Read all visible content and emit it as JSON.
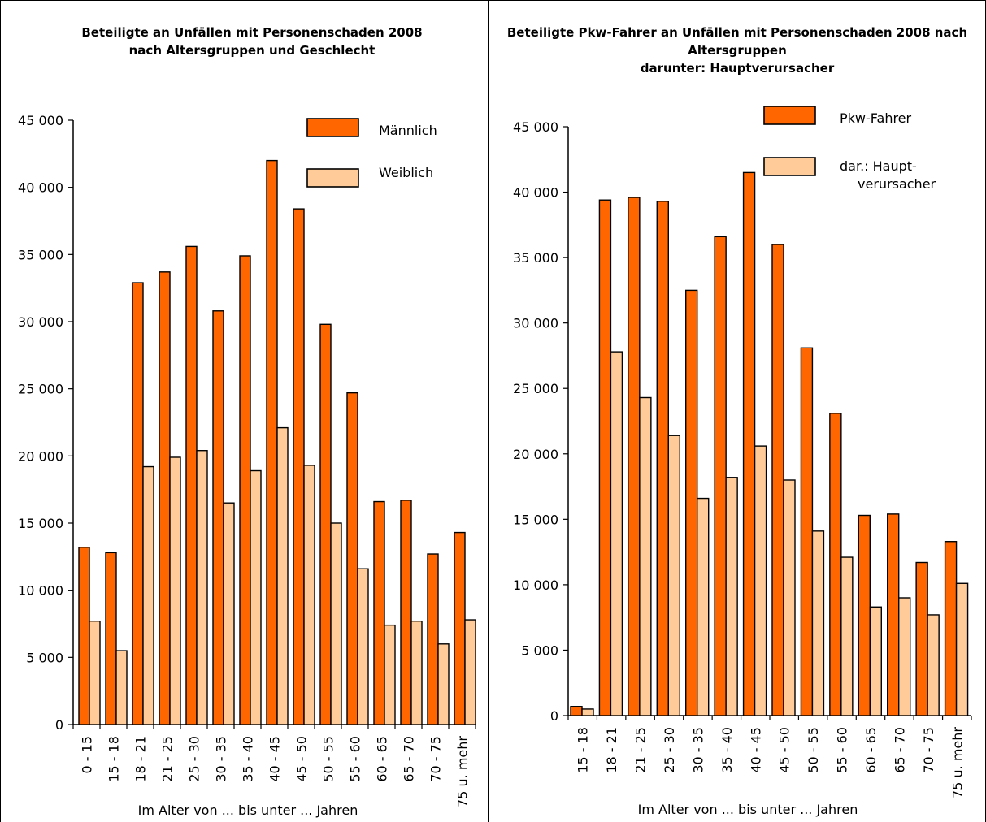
{
  "colors": {
    "male": "#ff6600",
    "female": "#ffcc99",
    "stroke": "#000000"
  },
  "chart_data": [
    {
      "type": "bar",
      "title": [
        "Beteiligte an Unfällen mit Personenschaden 2008",
        "nach Altersgruppen und Geschlecht"
      ],
      "xlabel": "Im Alter von ... bis unter ... Jahren",
      "ylabel": "",
      "ylim": [
        0,
        45000
      ],
      "yticks": [
        0,
        5000,
        10000,
        15000,
        20000,
        25000,
        30000,
        35000,
        40000,
        45000
      ],
      "ytick_labels": [
        "0",
        "5 000",
        "10 000",
        "15 000",
        "20 000",
        "25 000",
        "30 000",
        "35 000",
        "40 000",
        "45 000"
      ],
      "grid": false,
      "legend": "top-right",
      "categories": [
        "0 - 15",
        "15 - 18",
        "18 - 21",
        "21 - 25",
        "25 - 30",
        "30 - 35",
        "35 - 40",
        "40 - 45",
        "45 - 50",
        "50 - 55",
        "55 - 60",
        "60 - 65",
        "65 - 70",
        "70 - 75",
        "75 u. mehr"
      ],
      "series": [
        {
          "name": "Männlich",
          "values": [
            13200,
            12800,
            32900,
            33700,
            35600,
            30800,
            34900,
            42000,
            38400,
            29800,
            24700,
            16600,
            16700,
            12700,
            14300
          ]
        },
        {
          "name": "Weiblich",
          "values": [
            7700,
            5500,
            19200,
            19900,
            20400,
            16500,
            18900,
            22100,
            19300,
            15000,
            11600,
            7400,
            7700,
            6000,
            7800
          ]
        }
      ]
    },
    {
      "type": "bar",
      "title": [
        "Beteiligte Pkw-Fahrer an Unfällen mit Personenschaden 2008  nach",
        "Altersgruppen",
        "darunter: Hauptverursacher"
      ],
      "xlabel": "Im Alter von ... bis unter ... Jahren",
      "ylabel": "",
      "ylim": [
        0,
        45000
      ],
      "yticks": [
        0,
        5000,
        10000,
        15000,
        20000,
        25000,
        30000,
        35000,
        40000,
        45000
      ],
      "ytick_labels": [
        "0",
        "5 000",
        "10 000",
        "15 000",
        "20 000",
        "25 000",
        "30 000",
        "35 000",
        "40 000",
        "45 000"
      ],
      "grid": false,
      "legend": "top-right",
      "categories": [
        "15 - 18",
        "18 - 21",
        "21 - 25",
        "25 - 30",
        "30 - 35",
        "35 - 40",
        "40 - 45",
        "45 - 50",
        "50 - 55",
        "55 - 60",
        "60 - 65",
        "65 - 70",
        "70 - 75",
        "75 u. mehr"
      ],
      "series": [
        {
          "name": "Pkw-Fahrer",
          "values": [
            700,
            39400,
            39600,
            39300,
            32500,
            36600,
            41500,
            36000,
            28100,
            23100,
            15300,
            15400,
            11700,
            13300
          ]
        },
        {
          "name": "dar.: Haupt-verursacher",
          "label_lines": [
            "dar.: Haupt-",
            "verursacher"
          ],
          "values": [
            500,
            27800,
            24300,
            21400,
            16600,
            18200,
            20600,
            18000,
            14100,
            12100,
            8300,
            9000,
            7700,
            10100
          ]
        }
      ]
    }
  ]
}
